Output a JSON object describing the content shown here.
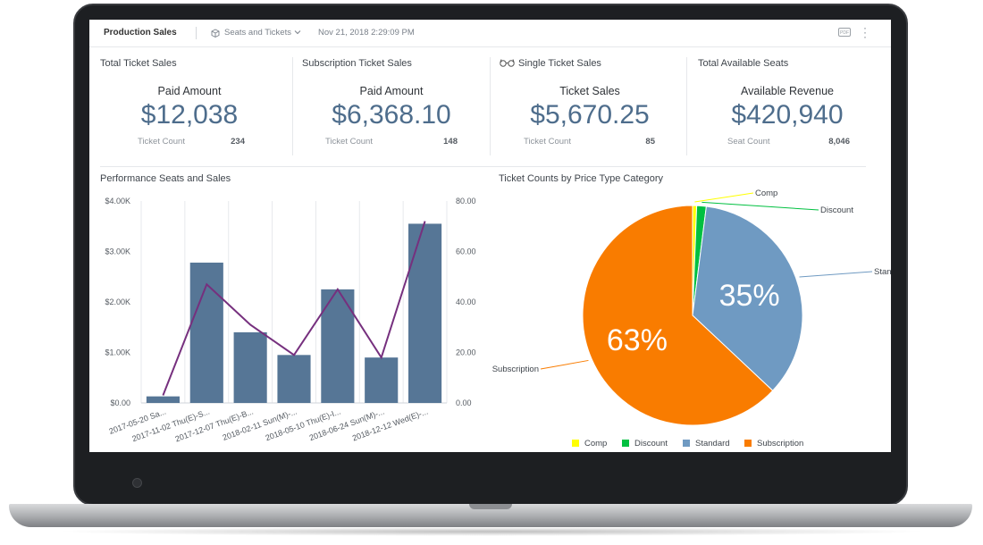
{
  "header": {
    "title": "Production Sales",
    "data_source": "Seats and Tickets",
    "timestamp": "Nov 21, 2018 2:29:09 PM",
    "pdf_label": "PDF"
  },
  "kpis": [
    {
      "title": "Total Ticket Sales",
      "label": "Paid Amount",
      "value": "$12,038",
      "sub_label": "Ticket Count",
      "sub_value": "234"
    },
    {
      "title": "Subscription Ticket Sales",
      "label": "Paid Amount",
      "value": "$6,368.10",
      "sub_label": "Ticket Count",
      "sub_value": "148"
    },
    {
      "title": "Single Ticket Sales",
      "label": "Ticket Sales",
      "value": "$5,670.25",
      "sub_label": "Ticket Count",
      "sub_value": "85"
    },
    {
      "title": "Total Available Seats",
      "label": "Available Revenue",
      "value": "$420,940",
      "sub_label": "Seat Count",
      "sub_value": "8,046"
    }
  ],
  "colors": {
    "accent": "#4e6d8c",
    "bar": "#567696",
    "line": "#76307e",
    "comp": "#ffff00",
    "discount": "#00c040",
    "standard": "#6f9ac2",
    "subscription": "#f97c00"
  },
  "chart_data": [
    {
      "type": "bar",
      "title": "Performance Seats and Sales",
      "categories": [
        "2017-05-20 Sa...",
        "2017-11-02 Thu(E)-S...",
        "2017-12-07 Thu(E)-B...",
        "2018-02-11 Sun(M)-...",
        "2018-05-10 Thu(E)-I...",
        "2018-06-24 Sun(M)-...",
        "2018-12-12 Wed(E)-..."
      ],
      "series": [
        {
          "type": "bar",
          "axis": "left",
          "values": [
            130,
            2780,
            1400,
            950,
            2250,
            900,
            3550
          ]
        },
        {
          "type": "line",
          "axis": "right",
          "values": [
            3,
            47,
            31,
            19,
            45,
            18,
            72
          ]
        }
      ],
      "y_left": {
        "range": [
          0,
          4000
        ],
        "ticks": [
          "$0.00",
          "$1.00K",
          "$2.00K",
          "$3.00K",
          "$4.00K"
        ]
      },
      "y_right": {
        "range": [
          0,
          80
        ],
        "ticks": [
          "0.00",
          "20.00",
          "40.00",
          "60.00",
          "80.00"
        ]
      },
      "grid": true
    },
    {
      "type": "pie",
      "title": "Ticket Counts by Price Type Category",
      "slices": [
        {
          "name": "Comp",
          "value": 0.6,
          "color": "#ffff00",
          "label": ""
        },
        {
          "name": "Discount",
          "value": 1.4,
          "color": "#00c040",
          "label": ""
        },
        {
          "name": "Standard",
          "value": 35,
          "color": "#6f9ac2",
          "label": "35%"
        },
        {
          "name": "Subscription",
          "value": 63,
          "color": "#f97c00",
          "label": "63%"
        }
      ],
      "legend_placement": "bottom"
    }
  ]
}
